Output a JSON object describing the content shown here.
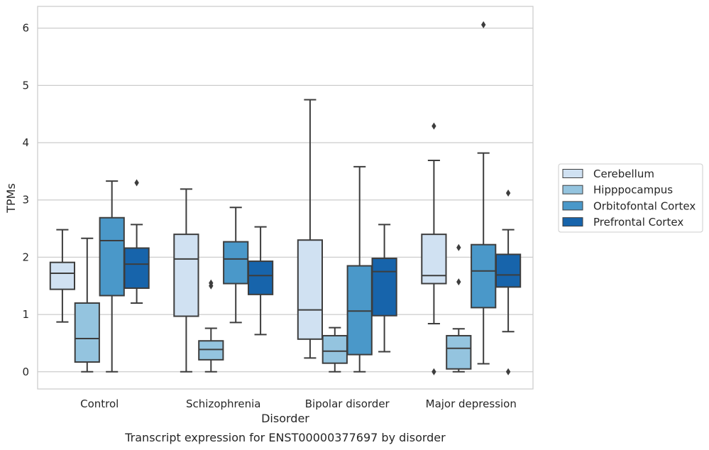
{
  "chart_data": {
    "type": "box",
    "title": "",
    "caption": "Transcript expression for ENST00000377697 by disorder",
    "xlabel": "Disorder",
    "ylabel": "TPMs",
    "ylim": [
      -0.3,
      6.38
    ],
    "yticks": [
      "0",
      "1",
      "2",
      "3",
      "4",
      "5",
      "6"
    ],
    "grid": "horizontal",
    "legend_position": "right",
    "categories": [
      "Control",
      "Schizophrenia",
      "Bipolar disorder",
      "Major depression"
    ],
    "series": [
      {
        "name": "Cerebellum",
        "color": "#d0e1f2",
        "boxes": [
          {
            "whisker_low": 0.87,
            "q1": 1.44,
            "median": 1.72,
            "q3": 1.91,
            "whisker_high": 2.48,
            "outliers": []
          },
          {
            "whisker_low": 0.0,
            "q1": 0.97,
            "median": 1.97,
            "q3": 2.4,
            "whisker_high": 3.19,
            "outliers": []
          },
          {
            "whisker_low": 0.24,
            "q1": 0.57,
            "median": 1.08,
            "q3": 2.3,
            "whisker_high": 4.75,
            "outliers": []
          },
          {
            "whisker_low": 0.84,
            "q1": 1.54,
            "median": 1.68,
            "q3": 2.4,
            "whisker_high": 3.69,
            "outliers": [
              4.29,
              0.0
            ]
          }
        ]
      },
      {
        "name": "Hipppocampus",
        "color": "#94c4df",
        "boxes": [
          {
            "whisker_low": 0.0,
            "q1": 0.17,
            "median": 0.58,
            "q3": 1.2,
            "whisker_high": 2.33,
            "outliers": []
          },
          {
            "whisker_low": 0.0,
            "q1": 0.21,
            "median": 0.39,
            "q3": 0.54,
            "whisker_high": 0.76,
            "outliers": [
              1.5,
              1.55
            ]
          },
          {
            "whisker_low": 0.0,
            "q1": 0.15,
            "median": 0.36,
            "q3": 0.63,
            "whisker_high": 0.77,
            "outliers": []
          },
          {
            "whisker_low": 0.0,
            "q1": 0.05,
            "median": 0.41,
            "q3": 0.63,
            "whisker_high": 0.75,
            "outliers": [
              2.17,
              1.57
            ]
          }
        ]
      },
      {
        "name": "Orbitofontal Cortex",
        "color": "#4a98c9",
        "boxes": [
          {
            "whisker_low": 0.0,
            "q1": 1.33,
            "median": 2.29,
            "q3": 2.69,
            "whisker_high": 3.33,
            "outliers": []
          },
          {
            "whisker_low": 0.86,
            "q1": 1.54,
            "median": 1.97,
            "q3": 2.27,
            "whisker_high": 2.87,
            "outliers": []
          },
          {
            "whisker_low": 0.0,
            "q1": 0.3,
            "median": 1.06,
            "q3": 1.85,
            "whisker_high": 3.58,
            "outliers": []
          },
          {
            "whisker_low": 0.14,
            "q1": 1.12,
            "median": 1.76,
            "q3": 2.22,
            "whisker_high": 3.82,
            "outliers": [
              6.06
            ]
          }
        ]
      },
      {
        "name": "Prefrontal Cortex",
        "color": "#1764ab",
        "boxes": [
          {
            "whisker_low": 1.2,
            "q1": 1.46,
            "median": 1.88,
            "q3": 2.16,
            "whisker_high": 2.57,
            "outliers": [
              3.3
            ]
          },
          {
            "whisker_low": 0.65,
            "q1": 1.35,
            "median": 1.68,
            "q3": 1.93,
            "whisker_high": 2.53,
            "outliers": []
          },
          {
            "whisker_low": 0.35,
            "q1": 0.98,
            "median": 1.75,
            "q3": 1.98,
            "whisker_high": 2.57,
            "outliers": []
          },
          {
            "whisker_low": 0.7,
            "q1": 1.48,
            "median": 1.69,
            "q3": 2.05,
            "whisker_high": 2.48,
            "outliers": [
              3.12,
              0.0
            ]
          }
        ]
      }
    ]
  }
}
